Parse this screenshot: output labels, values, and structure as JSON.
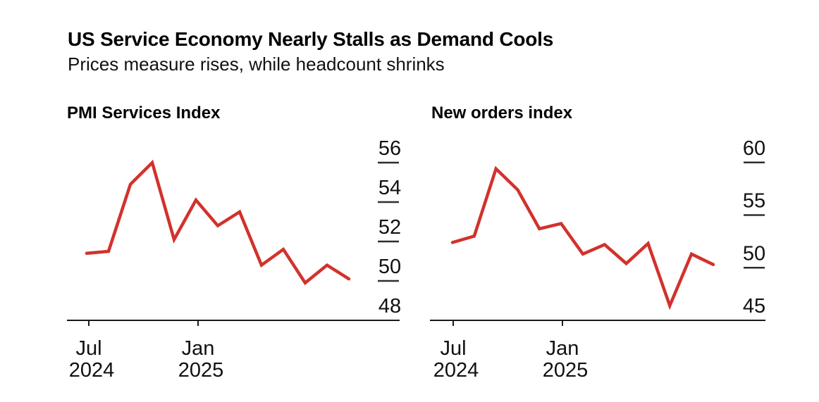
{
  "header": {
    "title": "US Service Economy Nearly Stalls as Demand Cools",
    "subtitle": "Prices measure rises, while headcount shrinks"
  },
  "colors": {
    "line": "#d2322c",
    "axis": "#1a1a1a",
    "tick_dash": "#2e2e2e",
    "label_text": "#111111"
  },
  "chart_data": [
    {
      "type": "line",
      "title": "PMI Services Index",
      "categories": [
        "Jul 2024",
        "Aug 2024",
        "Sep 2024",
        "Oct 2024",
        "Nov 2024",
        "Dec 2024",
        "Jan 2025",
        "Feb 2025",
        "Mar 2025",
        "Apr 2025",
        "May 2025",
        "Jun 2025",
        "Jul 2025"
      ],
      "values": [
        51.4,
        51.5,
        54.9,
        56.0,
        52.1,
        54.1,
        52.8,
        53.5,
        50.8,
        51.6,
        49.9,
        50.8,
        50.1
      ],
      "ylim": [
        48,
        56
      ],
      "yticks": [
        56,
        54,
        52,
        50,
        48
      ],
      "xticks": [
        {
          "line1": "Jul",
          "line2": "2024"
        },
        {
          "line1": "Jan",
          "line2": "2025"
        }
      ],
      "grid": "off",
      "legend": "none",
      "y_axis_side": "right"
    },
    {
      "type": "line",
      "title": "New orders index",
      "categories": [
        "Jul 2024",
        "Aug 2024",
        "Sep 2024",
        "Oct 2024",
        "Nov 2024",
        "Dec 2024",
        "Jan 2025",
        "Feb 2025",
        "Mar 2025",
        "Apr 2025",
        "May 2025",
        "Jun 2025",
        "Jul 2025"
      ],
      "values": [
        52.4,
        53.0,
        59.4,
        57.4,
        53.7,
        54.2,
        51.3,
        52.2,
        50.4,
        52.3,
        46.4,
        51.3,
        50.3
      ],
      "ylim": [
        45,
        60
      ],
      "yticks": [
        60,
        55,
        50,
        45
      ],
      "xticks": [
        {
          "line1": "Jul",
          "line2": "2024"
        },
        {
          "line1": "Jan",
          "line2": "2025"
        }
      ],
      "grid": "off",
      "legend": "none",
      "y_axis_side": "right"
    }
  ]
}
